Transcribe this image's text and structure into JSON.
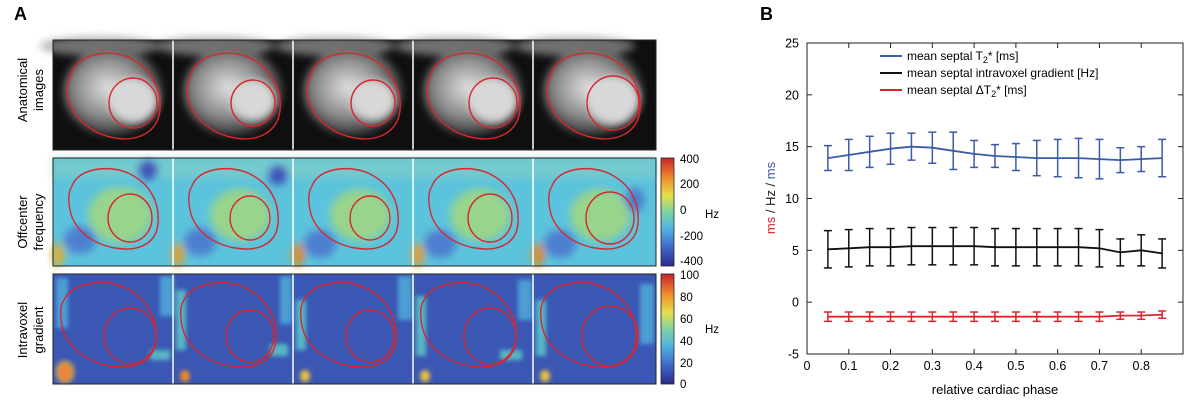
{
  "panel_a": {
    "label": "A",
    "rows": [
      {
        "label_line1": "Anatomical",
        "label_line2": "images"
      },
      {
        "label_line1": "Offcenter",
        "label_line2": "frequency"
      },
      {
        "label_line1": "Intravoxel",
        "label_line2": "gradient"
      }
    ],
    "frequency_colorbar": {
      "ticks": [
        "400",
        "200",
        "0",
        "-200",
        "-400"
      ],
      "unit": "Hz"
    },
    "gradient_colorbar": {
      "ticks": [
        "100",
        "80",
        "60",
        "40",
        "20",
        "0"
      ],
      "unit": "Hz"
    },
    "colors": {
      "contour": "#d8262f",
      "colormap": [
        "#2a2a8c",
        "#3f67c8",
        "#52b4e0",
        "#7fd3a0",
        "#e3e04a",
        "#f08a2c",
        "#c8232b"
      ]
    }
  },
  "panel_b": {
    "label": "B"
  },
  "chart_data": {
    "type": "line",
    "title": "",
    "xlabel": "relative cardiac phase",
    "ylabel_parts": [
      {
        "text": "ms",
        "color": "#d8262f"
      },
      {
        "text": " / ",
        "color": "#222222"
      },
      {
        "text": "Hz",
        "color": "#222222"
      },
      {
        "text": " / ",
        "color": "#222222"
      },
      {
        "text": "ms",
        "color": "#3b5ba8"
      }
    ],
    "xlim": [
      0,
      0.9
    ],
    "ylim": [
      -5,
      25
    ],
    "xticks": [
      "0",
      "0.1",
      "0.2",
      "0.3",
      "0.4",
      "0.5",
      "0.6",
      "0.7",
      "0.8"
    ],
    "yticks": [
      "-5",
      "0",
      "5",
      "10",
      "15",
      "20",
      "25"
    ],
    "grid": false,
    "legend_position": "top-center",
    "x": [
      0.05,
      0.1,
      0.15,
      0.2,
      0.25,
      0.3,
      0.35,
      0.4,
      0.45,
      0.5,
      0.55,
      0.6,
      0.65,
      0.7,
      0.75,
      0.8,
      0.85
    ],
    "series": [
      {
        "name": "mean septal T2* [ms]",
        "legend_main": "mean septal T",
        "legend_sub": "2",
        "legend_rest": "* [ms]",
        "color": "#3b5ba8",
        "values": [
          13.9,
          14.2,
          14.5,
          14.8,
          15.0,
          14.9,
          14.6,
          14.3,
          14.1,
          14.0,
          13.9,
          13.9,
          13.9,
          13.8,
          13.7,
          13.8,
          13.9
        ],
        "errors": [
          1.2,
          1.5,
          1.5,
          1.5,
          1.3,
          1.5,
          1.8,
          1.3,
          1.1,
          1.3,
          1.7,
          1.8,
          1.9,
          1.9,
          1.2,
          1.2,
          1.8
        ]
      },
      {
        "name": "mean septal intravoxel gradient [Hz]",
        "legend_main": "mean septal intravoxel gradient [Hz]",
        "legend_sub": "",
        "legend_rest": "",
        "color": "#111111",
        "values": [
          5.1,
          5.2,
          5.3,
          5.3,
          5.4,
          5.4,
          5.4,
          5.4,
          5.3,
          5.3,
          5.3,
          5.3,
          5.3,
          5.2,
          4.8,
          5.0,
          4.7
        ],
        "errors": [
          1.8,
          1.8,
          1.8,
          1.8,
          1.8,
          1.8,
          1.8,
          1.8,
          1.8,
          1.8,
          1.8,
          1.8,
          1.8,
          1.8,
          1.3,
          1.5,
          1.4
        ]
      },
      {
        "name": "mean septal ΔT2* [ms]",
        "legend_main": "mean septal ΔT",
        "legend_sub": "2",
        "legend_rest": "* [ms]",
        "color": "#d8262f",
        "values": [
          -1.4,
          -1.4,
          -1.4,
          -1.4,
          -1.4,
          -1.4,
          -1.4,
          -1.4,
          -1.4,
          -1.4,
          -1.4,
          -1.4,
          -1.4,
          -1.4,
          -1.3,
          -1.3,
          -1.2
        ],
        "errors": [
          0.45,
          0.45,
          0.45,
          0.45,
          0.45,
          0.45,
          0.45,
          0.45,
          0.45,
          0.45,
          0.45,
          0.45,
          0.45,
          0.45,
          0.35,
          0.35,
          0.35
        ]
      }
    ]
  }
}
